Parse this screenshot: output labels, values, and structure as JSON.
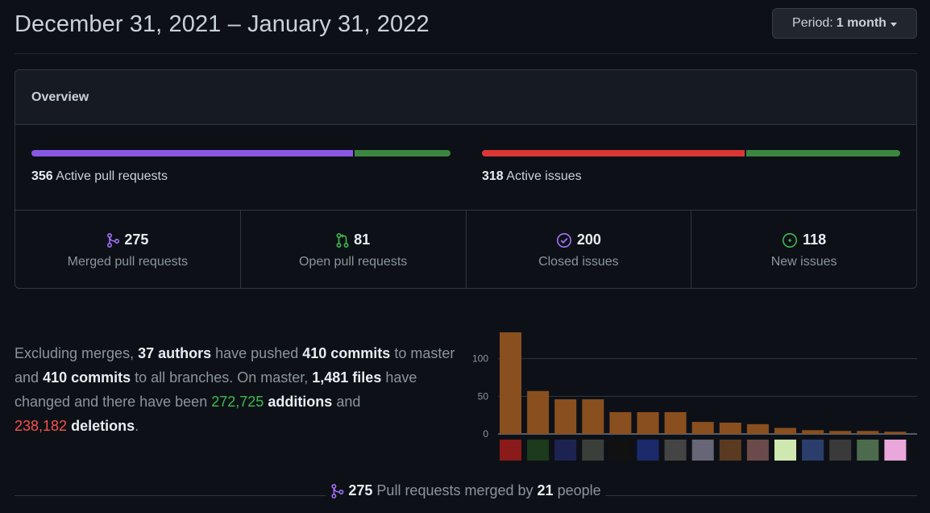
{
  "header": {
    "date_range": "December 31, 2021 – January 31, 2022",
    "period_label": "Period:",
    "period_value": "1 month"
  },
  "overview": {
    "title": "Overview",
    "pull_requests": {
      "count": "356",
      "label": "Active pull requests",
      "merged_fraction": 0.77,
      "colors": [
        "#8957e5",
        "#3b8640"
      ]
    },
    "issues": {
      "count": "318",
      "label": "Active issues",
      "closed_fraction": 0.63,
      "colors": [
        "#da3633",
        "#3b8640"
      ]
    },
    "stats": [
      {
        "value": "275",
        "label": "Merged pull requests",
        "icon": "merge-icon",
        "color": "#a371f7"
      },
      {
        "value": "81",
        "label": "Open pull requests",
        "icon": "pull-request-icon",
        "color": "#3fb950"
      },
      {
        "value": "200",
        "label": "Closed issues",
        "icon": "issue-closed-icon",
        "color": "#a371f7"
      },
      {
        "value": "118",
        "label": "New issues",
        "icon": "issue-opened-icon",
        "color": "#3fb950"
      }
    ]
  },
  "summary": {
    "t1": "Excluding merges,",
    "authors": "37 authors",
    "t2": "have pushed",
    "commits_master": "410 commits",
    "t3": "to master and",
    "commits_all": "410 commits",
    "t4": "to all branches. On master,",
    "files": "1,481 files",
    "t5": "have changed and there have been",
    "additions_num": "272,725",
    "additions_word": "additions",
    "t6": "and",
    "deletions_num": "238,182",
    "deletions_word": "deletions",
    "t7": "."
  },
  "chart_data": {
    "type": "bar",
    "values": [
      135,
      57,
      46,
      46,
      29,
      29,
      29,
      16,
      15,
      13,
      8,
      5,
      4,
      4,
      3
    ],
    "ylim": [
      0,
      135
    ],
    "yticks": [
      "0",
      "50",
      "100"
    ],
    "bar_color": "#8a4f1f"
  },
  "footer": {
    "count": "275",
    "t1": "Pull requests merged by",
    "people": "21",
    "t2": "people"
  }
}
